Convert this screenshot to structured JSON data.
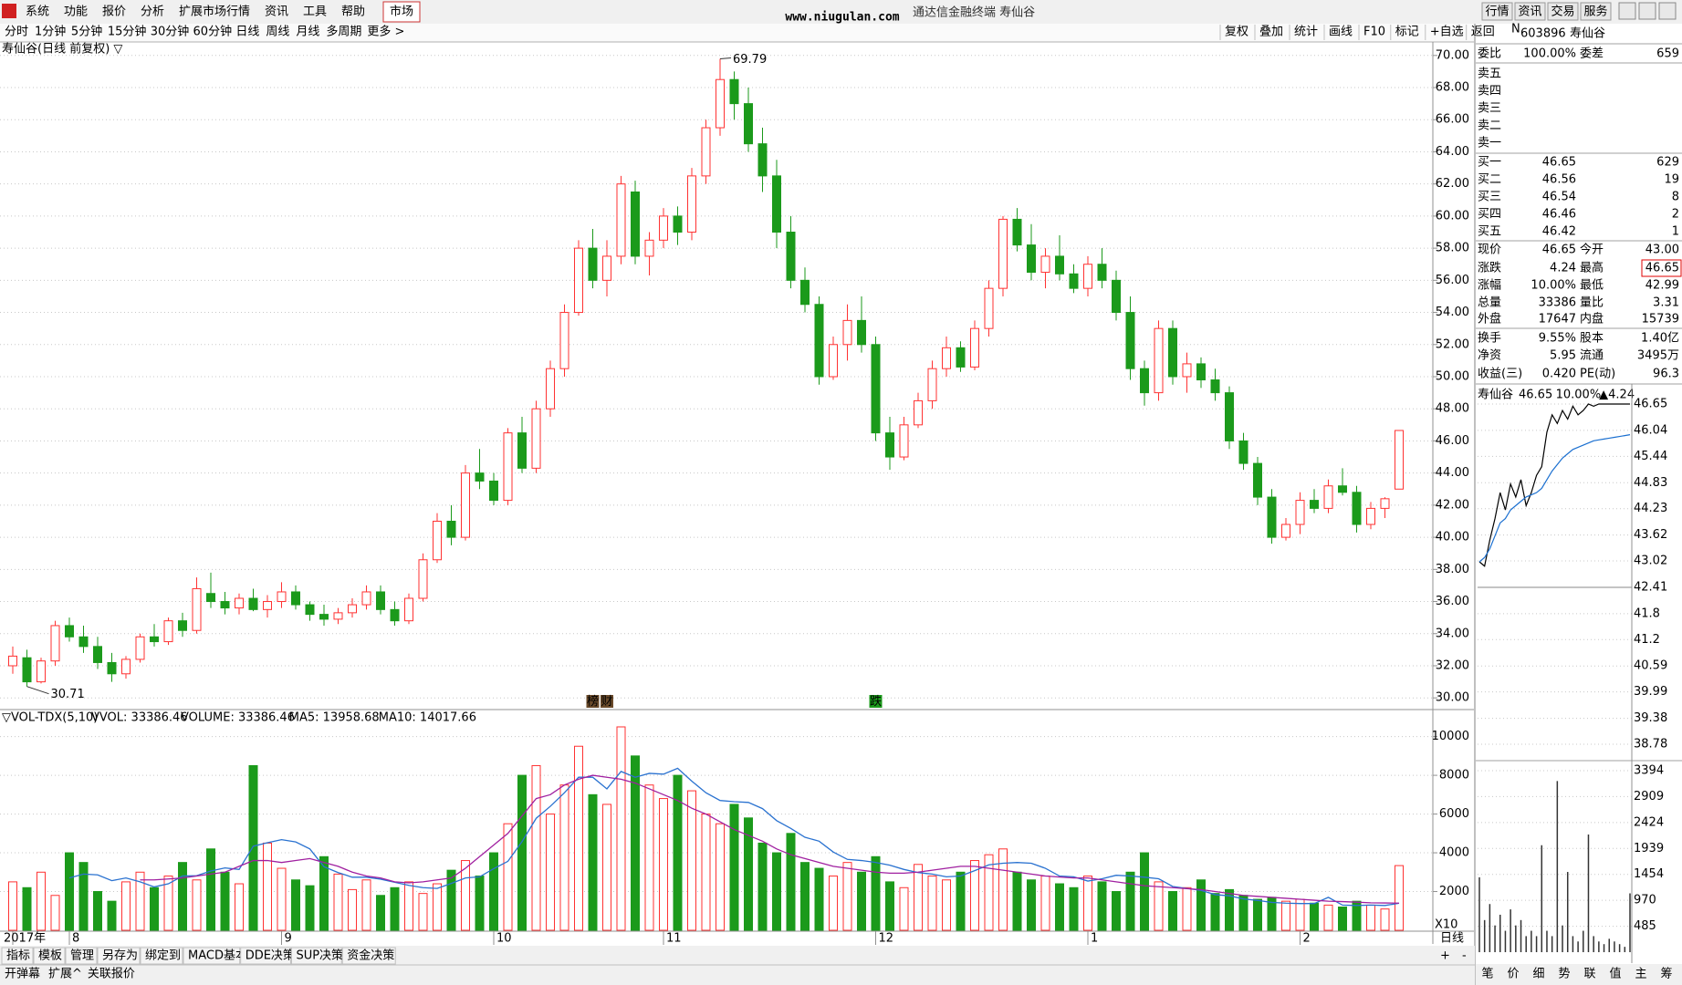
{
  "window": {
    "title": "通达信金融终端 寿仙谷",
    "watermark": "www.niugulan.com",
    "buttons": [
      "行情",
      "资讯",
      "交易",
      "服务"
    ]
  },
  "menu": {
    "items": [
      "系统",
      "功能",
      "报价",
      "分析",
      "扩展市场行情",
      "资讯",
      "工具",
      "帮助"
    ],
    "market": "市场"
  },
  "periods": {
    "items": [
      "分时",
      "1分钟",
      "5分钟",
      "15分钟",
      "30分钟",
      "60分钟",
      "日线",
      "周线",
      "月线",
      "多周期",
      "更多 >"
    ],
    "active": 6
  },
  "tools": [
    "复权",
    "叠加",
    "统计",
    "画线",
    "F10",
    "标记",
    "+自选",
    "返回"
  ],
  "chart_data": [
    {
      "type": "candlestick",
      "title": "寿仙谷(日线 前复权) ▽",
      "open": [
        32,
        32.5,
        31,
        32.3,
        34.5,
        33.8,
        33.2,
        32.2,
        31.5,
        32.4,
        33.8,
        33.5,
        34.8,
        34.2,
        36.5,
        36,
        35.6,
        36.2,
        35.5,
        36,
        36.6,
        35.8,
        35.2,
        34.9,
        35.3,
        35.8,
        36.6,
        35.5,
        34.8,
        36.2,
        38.6,
        41,
        40,
        44,
        43.5,
        42.3,
        46.5,
        44.3,
        48,
        50.5,
        54,
        58,
        56,
        57.5,
        61.5,
        57.5,
        58.5,
        60,
        59,
        62.5,
        65.5,
        68.5,
        67,
        64.5,
        62.5,
        59,
        56,
        54.5,
        50,
        52,
        53.5,
        52,
        46.5,
        45,
        47,
        48.5,
        50.5,
        51.8,
        50.6,
        53,
        55.5,
        59.8,
        58.2,
        56.5,
        57.5,
        56.4,
        55.5,
        57,
        56,
        54,
        50.5,
        49,
        53,
        50,
        50.8,
        49.8,
        49,
        46,
        44.6,
        42.5,
        40,
        40.8,
        42.3,
        41.8,
        43.2,
        42.8,
        40.8,
        41.8,
        43
      ],
      "high": [
        33.2,
        33,
        32.5,
        34.8,
        35,
        34.5,
        33.8,
        32.8,
        32.6,
        34,
        34.6,
        35,
        35.3,
        37.5,
        37.8,
        36.6,
        36.5,
        36.8,
        36.4,
        37.2,
        37,
        36,
        35.8,
        35.6,
        36.2,
        37,
        37,
        36,
        36.5,
        39,
        41.5,
        42,
        44.5,
        45.5,
        44,
        46.8,
        47.5,
        48.5,
        51,
        54.5,
        58.5,
        59.2,
        58.5,
        62.5,
        62.2,
        59,
        60.5,
        60.6,
        63,
        66,
        69.79,
        69,
        68,
        65.5,
        63.5,
        60,
        56.8,
        55,
        52.5,
        54.5,
        55,
        52.5,
        47.5,
        47.5,
        49,
        51,
        52.5,
        52.2,
        53.5,
        56,
        60,
        60.5,
        59.5,
        58,
        58.8,
        57,
        57.5,
        58,
        56.6,
        55,
        51,
        53.5,
        53.5,
        51.5,
        51.2,
        50.5,
        49.4,
        46.5,
        45,
        43,
        41.2,
        42.8,
        43,
        43.6,
        44.3,
        43.2,
        42.2,
        42.5,
        46.65
      ],
      "low": [
        31.5,
        30.71,
        30.9,
        32,
        33.5,
        32.8,
        31.8,
        31,
        31.2,
        32.2,
        33.2,
        33.3,
        33.8,
        34,
        35.6,
        35.2,
        35.2,
        35.4,
        35,
        35.6,
        35.5,
        34.8,
        34.5,
        34.6,
        35,
        35.5,
        35.2,
        34.5,
        34.6,
        36,
        38.4,
        39.5,
        39.8,
        43,
        42,
        42,
        44,
        44,
        47.5,
        50,
        53.8,
        55.5,
        55,
        57,
        57,
        56.3,
        58,
        58.2,
        58.5,
        62,
        65,
        66,
        64,
        61.5,
        58,
        55.5,
        54,
        49.5,
        49.8,
        51,
        51.5,
        46,
        44.2,
        44.8,
        46.8,
        48,
        50,
        50.3,
        50.4,
        52.5,
        55,
        57.8,
        56,
        55.5,
        56,
        55.2,
        55,
        55.5,
        53.5,
        49.8,
        48.2,
        48.5,
        49.5,
        49,
        49.3,
        48.5,
        45.5,
        44.2,
        42,
        39.6,
        39.8,
        40.2,
        41.5,
        41.5,
        42.6,
        40.3,
        40.5,
        41.2,
        42.99
      ],
      "close": [
        32.6,
        31,
        32.3,
        34.5,
        33.8,
        33.2,
        32.2,
        31.5,
        32.4,
        33.8,
        33.5,
        34.8,
        34.2,
        36.8,
        36,
        35.6,
        36.2,
        35.5,
        36,
        36.6,
        35.8,
        35.2,
        34.9,
        35.3,
        35.8,
        36.6,
        35.5,
        34.8,
        36.2,
        38.6,
        41,
        40,
        44,
        43.5,
        42.3,
        46.5,
        44.3,
        48,
        50.5,
        54,
        58,
        56,
        57.5,
        62,
        57.5,
        58.5,
        60,
        59,
        62.5,
        65.5,
        68.5,
        67,
        64.5,
        62.5,
        59,
        56,
        54.5,
        50,
        52,
        53.5,
        52,
        46.5,
        45,
        47,
        48.5,
        50.5,
        51.8,
        50.6,
        53,
        55.5,
        59.8,
        58.2,
        56.5,
        57.5,
        56.4,
        55.5,
        57,
        56,
        54,
        50.5,
        49,
        53,
        50,
        50.8,
        49.8,
        49,
        46,
        44.6,
        42.5,
        40,
        40.8,
        42.3,
        41.8,
        43.2,
        42.8,
        40.8,
        41.8,
        42.4,
        46.65
      ],
      "ylim": [
        29.5,
        70.5
      ],
      "yticks": [
        {
          "value": 30,
          "label": "30.00"
        },
        {
          "value": 32,
          "label": "32.00"
        },
        {
          "value": 34,
          "label": "34.00"
        },
        {
          "value": 36,
          "label": "36.00"
        },
        {
          "value": 38,
          "label": "38.00"
        },
        {
          "value": 40,
          "label": "40.00"
        },
        {
          "value": 42,
          "label": "42.00"
        },
        {
          "value": 44,
          "label": "44.00"
        },
        {
          "value": 46,
          "label": "46.00"
        },
        {
          "value": 48,
          "label": "48.00"
        },
        {
          "value": 50,
          "label": "50.00"
        },
        {
          "value": 52,
          "label": "52.00"
        },
        {
          "value": 54,
          "label": "54.00"
        },
        {
          "value": 56,
          "label": "56.00"
        },
        {
          "value": 58,
          "label": "58.00"
        },
        {
          "value": 60,
          "label": "60.00"
        },
        {
          "value": 62,
          "label": "62.00"
        },
        {
          "value": 64,
          "label": "64.00"
        },
        {
          "value": 66,
          "label": "66.00"
        },
        {
          "value": 68,
          "label": "68.00"
        },
        {
          "value": 70,
          "label": "70.00"
        }
      ],
      "grid": true,
      "up_color": "#ff3232",
      "down_color": "#1b9a1b",
      "events": [
        "榜",
        "财",
        "跌"
      ]
    },
    {
      "type": "bar",
      "title": "▽VOL-TDX(5,10)",
      "subtitle": "VVOL: 33386.46",
      "legend": [
        {
          "label": "VOLUME: 33386.46",
          "color": "#2a72d0"
        },
        {
          "label": "MA5: 13958.68",
          "color": "#2a72d0"
        },
        {
          "label": "MA10: 14017.66",
          "color": "#a020a0"
        }
      ],
      "categories": [
        "2017年",
        null,
        null,
        null,
        "8",
        null,
        null,
        null,
        null,
        null,
        null,
        null,
        null,
        null,
        null,
        null,
        null,
        null,
        null,
        "9",
        null,
        null,
        null,
        null,
        null,
        null,
        null,
        null,
        null,
        null,
        null,
        null,
        null,
        null,
        "10",
        null,
        null,
        null,
        null,
        null,
        null,
        null,
        null,
        null,
        null,
        null,
        "11",
        null,
        null,
        null,
        null,
        null,
        null,
        null,
        null,
        null,
        null,
        null,
        null,
        null,
        null,
        "12",
        null,
        null,
        null,
        null,
        null,
        null,
        null,
        null,
        null,
        null,
        null,
        null,
        null,
        null,
        "1",
        null,
        null,
        null,
        null,
        null,
        null,
        null,
        null,
        null,
        null,
        null,
        null,
        null,
        null,
        "2",
        null,
        null,
        null,
        null,
        null,
        null,
        null
      ],
      "values": [
        2500,
        2200,
        3000,
        1800,
        4000,
        3500,
        2000,
        1500,
        2500,
        3000,
        2200,
        2800,
        3500,
        2600,
        4200,
        3000,
        2400,
        8500,
        4500,
        3200,
        2600,
        2300,
        3800,
        2900,
        2100,
        2600,
        1800,
        2200,
        2500,
        1900,
        2400,
        3100,
        3600,
        2800,
        4000,
        5500,
        8000,
        8500,
        6000,
        7500,
        9500,
        7000,
        6500,
        10500,
        9000,
        7500,
        6800,
        8000,
        7200,
        6000,
        5500,
        6500,
        5800,
        4500,
        4000,
        5000,
        3500,
        3200,
        2800,
        3500,
        3000,
        3800,
        2500,
        2200,
        3400,
        2800,
        2600,
        3000,
        3600,
        3900,
        4200,
        3000,
        2600,
        2800,
        2400,
        2200,
        2800,
        2500,
        2000,
        3000,
        4000,
        2500,
        2000,
        2200,
        2600,
        1900,
        2100,
        1800,
        1600,
        1700,
        1500,
        1600,
        1400,
        1300,
        1200,
        1500,
        1300,
        1100,
        3339
      ],
      "series": [
        {
          "color": "#2a72d0",
          "values": [
            null,
            null,
            null,
            null,
            2700,
            2900,
            2860,
            2560,
            2700,
            2500,
            2240,
            2400,
            2800,
            2820,
            3060,
            3220,
            3140,
            4340,
            4520,
            4680,
            4560,
            4200,
            3280,
            2980,
            2740,
            2740,
            2640,
            2480,
            2320,
            2200,
            2160,
            2420,
            2700,
            2760,
            3180,
            3560,
            4580,
            5780,
            6400,
            7100,
            7900,
            7900,
            7300,
            8200,
            7900,
            8100,
            8060,
            8360,
            7700,
            7100,
            6700,
            6640,
            6600,
            6280,
            5660,
            5260,
            4800,
            4600,
            4040,
            3660,
            3600,
            3500,
            3360,
            3140,
            2980,
            2900,
            2760,
            2800,
            3080,
            3380,
            3460,
            3500,
            3460,
            3200,
            2800,
            2760,
            2540,
            2660,
            2840,
            2800,
            2740,
            2660,
            2260,
            2160,
            2060,
            1840,
            1780,
            1620,
            1540,
            1440,
            1400,
            1380,
            1380,
            1700,
            1300,
            1280,
            1300,
            1280,
            1396
          ]
        },
        {
          "color": "#a020a0",
          "values": [
            null,
            null,
            null,
            null,
            null,
            null,
            null,
            null,
            null,
            2600,
            2600,
            2650,
            2700,
            2800,
            2900,
            3000,
            3300,
            3600,
            3600,
            3500,
            3600,
            3700,
            3500,
            3300,
            3000,
            2800,
            2700,
            2500,
            2450,
            2500,
            2600,
            2700,
            3200,
            3800,
            4400,
            5000,
            5900,
            6800,
            7000,
            7500,
            7800,
            8000,
            7900,
            7800,
            7600,
            7300,
            7000,
            6700,
            6300,
            6000,
            5600,
            5200,
            4900,
            4600,
            4200,
            3900,
            3700,
            3500,
            3300,
            3200,
            3100,
            3000,
            2950,
            2950,
            3000,
            3100,
            3200,
            3300,
            3300,
            3200,
            3100,
            3000,
            2900,
            2800,
            2750,
            2700,
            2700,
            2600,
            2500,
            2400,
            2300,
            2250,
            2200,
            2150,
            2100,
            2000,
            1900,
            1800,
            1750,
            1700,
            1650,
            1600,
            1550,
            1500,
            1480,
            1450,
            1420,
            1410,
            1402
          ]
        }
      ],
      "ylim": [
        0,
        11300
      ],
      "yticks": [
        2000,
        4000,
        6000,
        8000,
        10000
      ],
      "multiplier": "X10",
      "grid": true
    },
    {
      "type": "line",
      "title": "寿仙谷",
      "header": [
        "46.65",
        "10.00%",
        "▲4.24"
      ],
      "values": [
        43.0,
        42.9,
        43.5,
        44.0,
        44.6,
        44.2,
        44.8,
        44.5,
        44.9,
        44.3,
        44.6,
        45.0,
        45.2,
        46.0,
        46.4,
        46.2,
        46.5,
        46.3,
        46.6,
        46.4,
        46.5,
        46.65,
        46.6,
        46.65,
        46.65,
        46.65,
        46.65,
        46.65,
        46.65,
        46.65
      ],
      "average": [
        43.0,
        43.1,
        43.3,
        43.6,
        43.9,
        44.0,
        44.2,
        44.3,
        44.4,
        44.5,
        44.55,
        44.6,
        44.7,
        44.9,
        45.1,
        45.25,
        45.4,
        45.5,
        45.6,
        45.65,
        45.7,
        45.75,
        45.8,
        45.82,
        45.84,
        45.86,
        45.88,
        45.9,
        45.92,
        45.94
      ],
      "volumes": [
        1400,
        600,
        900,
        500,
        700,
        400,
        800,
        500,
        600,
        300,
        400,
        300,
        2000,
        400,
        300,
        3200,
        500,
        1500,
        300,
        200,
        400,
        2200,
        300,
        200,
        150,
        250,
        200,
        150,
        100,
        1100
      ],
      "ylim": [
        38.78,
        46.65
      ],
      "yticks": [
        46.65,
        46.04,
        45.44,
        44.83,
        44.23,
        43.62,
        43.02,
        42.41,
        41.8,
        41.2,
        40.59,
        39.99,
        39.38,
        38.78
      ],
      "vol_ylim": [
        0,
        3394
      ],
      "vol_yticks": [
        3394,
        2909,
        2424,
        1939,
        1454,
        970,
        485
      ],
      "line_color": "#000000",
      "average_color": "#1a6fd0"
    }
  ],
  "quote_panel": {
    "flag": "N",
    "code": "603896",
    "name": "寿仙谷",
    "ratio": [
      {
        "label": "委比",
        "value": "100.00%",
        "color": "#e00000"
      },
      {
        "label": "委差",
        "value": "659",
        "color": "#e00000"
      }
    ],
    "sell": [
      "卖五",
      "卖四",
      "卖三",
      "卖二",
      "卖一"
    ],
    "buy": [
      [
        "买一",
        "46.65",
        "629"
      ],
      [
        "买二",
        "46.56",
        "19"
      ],
      [
        "买三",
        "46.54",
        "8"
      ],
      [
        "买四",
        "46.46",
        "2"
      ],
      [
        "买五",
        "46.42",
        "1"
      ]
    ],
    "quote": [
      {
        "label": "现价",
        "value": "46.65",
        "color": "#e00000"
      },
      {
        "label": "今开",
        "value": "43.00",
        "color": "#e00000"
      },
      {
        "label": "涨跌",
        "value": "4.24",
        "color": "#e00000"
      },
      {
        "label": "最高",
        "value": "46.65",
        "color": "#e00000"
      },
      {
        "label": "涨幅",
        "value": "10.00%",
        "color": "#e00000"
      },
      {
        "label": "最低",
        "value": "42.99",
        "color": "#e00000"
      },
      {
        "label": "总量",
        "value": "33386",
        "color": "#000000"
      },
      {
        "label": "量比",
        "value": "3.31",
        "color": "#1060d0"
      },
      {
        "label": "外盘",
        "value": "17647",
        "color": "#e00000"
      },
      {
        "label": "内盘",
        "value": "15739",
        "color": "#108a10"
      },
      {
        "label": "换手",
        "value": "9.55%",
        "color": "#000000"
      },
      {
        "label": "股本",
        "value": "1.40亿",
        "color": "#000000"
      },
      {
        "label": "净资",
        "value": "5.95",
        "color": "#000000"
      },
      {
        "label": "流通",
        "value": "3495万",
        "color": "#000000"
      },
      {
        "label": "收益(三)",
        "value": "0.420",
        "color": "#000000"
      },
      {
        "label": "PE(动)",
        "value": "96.3",
        "color": "#000000"
      }
    ]
  },
  "bottom": {
    "tabs": [
      "指标",
      "模板",
      "管理",
      "另存为",
      "绑定到",
      "MACD基本",
      "DDE决策",
      "SUP决策",
      "资金决策"
    ],
    "active": 2,
    "tabs2": [
      "开弹幕",
      "扩展^",
      "关联报价"
    ],
    "period": "日线",
    "zoom": [
      "+",
      "-"
    ],
    "right": [
      "笔",
      "价",
      "细",
      "势",
      "联",
      "值",
      "主",
      "筹"
    ],
    "right_active": 3
  }
}
